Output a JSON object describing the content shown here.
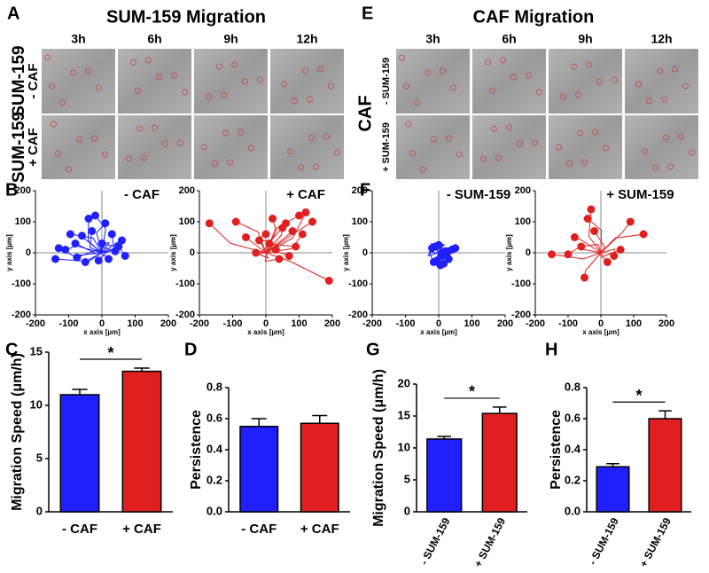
{
  "time_lapse": [
    {
      "panel": "A",
      "title": "SUM-159 Migration",
      "columns": [
        "3h",
        "6h",
        "9h",
        "12h"
      ],
      "rows": [
        {
          "label": "SUM-159",
          "condition": "- CAF"
        },
        {
          "label": "SUM-159",
          "condition": "+ CAF"
        }
      ]
    },
    {
      "panel": "E",
      "title": "CAF Migration",
      "columns": [
        "3h",
        "6h",
        "9h",
        "12h"
      ],
      "group_label": "CAF",
      "rows": [
        {
          "condition": "- SUM-159"
        },
        {
          "condition": "+ SUM-159"
        }
      ]
    }
  ],
  "chart_data": [
    {
      "type": "scatter",
      "panel": "B",
      "title": "- CAF",
      "xlabel": "x axis [µm]",
      "ylabel": "y axis [µm]",
      "color": "#1f1fff",
      "xlim": [
        -200,
        200
      ],
      "ylim": [
        -200,
        200
      ],
      "xticks": [
        -200,
        -100,
        0,
        100,
        200
      ],
      "yticks": [
        -200,
        -100,
        0,
        100,
        200
      ],
      "x": [
        -130,
        -95,
        -60,
        -140,
        -110,
        -75,
        -40,
        -20,
        10,
        30,
        50,
        70,
        -50,
        -10,
        20,
        -80,
        40,
        60,
        -30,
        0
      ],
      "y": [
        15,
        60,
        55,
        -20,
        10,
        -15,
        110,
        120,
        95,
        60,
        20,
        -10,
        -30,
        -25,
        -20,
        30,
        5,
        40,
        70,
        30
      ]
    },
    {
      "type": "scatter",
      "title": "+ CAF",
      "xlabel": "x axis [µm]",
      "ylabel": "y axis [µm]",
      "color": "#e02020",
      "xlim": [
        -200,
        200
      ],
      "ylim": [
        -200,
        200
      ],
      "xticks": [
        -200,
        -100,
        0,
        100,
        200
      ],
      "yticks": [
        -200,
        -100,
        0,
        100,
        200
      ],
      "x": [
        -170,
        -90,
        -60,
        -30,
        0,
        20,
        60,
        80,
        100,
        120,
        90,
        140,
        40,
        -20,
        70,
        110,
        190,
        50,
        10,
        30
      ],
      "y": [
        95,
        100,
        50,
        0,
        60,
        110,
        95,
        70,
        120,
        130,
        20,
        100,
        -20,
        40,
        -10,
        60,
        -90,
        80,
        30,
        10
      ]
    },
    {
      "type": "scatter",
      "panel": "F",
      "title": "- SUM-159",
      "xlabel": "x axis [µm]",
      "ylabel": "y axis [µm]",
      "color": "#1f1fff",
      "xlim": [
        -200,
        200
      ],
      "ylim": [
        -200,
        200
      ],
      "xticks": [
        -200,
        -100,
        0,
        100,
        200
      ],
      "yticks": [
        -200,
        -100,
        0,
        100,
        200
      ],
      "x": [
        -20,
        -10,
        0,
        10,
        20,
        30,
        40,
        50,
        -15,
        5,
        25,
        -5,
        15,
        10
      ],
      "y": [
        15,
        20,
        25,
        -10,
        5,
        -20,
        10,
        15,
        -30,
        -40,
        0,
        -25,
        -35,
        0
      ]
    },
    {
      "type": "scatter",
      "title": "+ SUM-159",
      "xlabel": "x axis [µm]",
      "ylabel": "y axis [µm]",
      "color": "#e02020",
      "xlim": [
        -200,
        200
      ],
      "ylim": [
        -200,
        200
      ],
      "xticks": [
        -200,
        -100,
        0,
        100,
        200
      ],
      "yticks": [
        -200,
        -100,
        0,
        100,
        200
      ],
      "x": [
        -30,
        -40,
        -80,
        -150,
        -100,
        40,
        -50,
        90,
        130,
        -20,
        20,
        -60,
        60
      ],
      "y": [
        140,
        110,
        50,
        -5,
        -5,
        -10,
        -80,
        100,
        60,
        70,
        -30,
        20,
        10
      ]
    },
    {
      "type": "bar",
      "panel": "C",
      "ylabel": "Migration Speed (μm/h)",
      "categories": [
        "- CAF",
        "+ CAF"
      ],
      "values": [
        11.0,
        13.2
      ],
      "errors": [
        0.5,
        0.3
      ],
      "colors": [
        "#1f1fff",
        "#e02020"
      ],
      "ylim": [
        0,
        15
      ],
      "yticks": [
        0,
        5,
        10,
        15
      ],
      "significance": "*"
    },
    {
      "type": "bar",
      "panel": "D",
      "ylabel": "Persistence",
      "categories": [
        "- CAF",
        "+ CAF"
      ],
      "values": [
        0.55,
        0.57
      ],
      "errors": [
        0.05,
        0.05
      ],
      "colors": [
        "#1f1fff",
        "#e02020"
      ],
      "ylim": [
        0,
        0.8
      ],
      "yticks": [
        {
          "value": 0,
          "label": "0.0"
        },
        0.2,
        0.4,
        0.6,
        0.8
      ]
    },
    {
      "type": "bar",
      "panel": "G",
      "ylabel": "Migration Speed (μm/h)",
      "categories": [
        "- SUM-159",
        "+ SUM-159"
      ],
      "values": [
        11.4,
        15.4
      ],
      "errors": [
        0.4,
        1.0
      ],
      "colors": [
        "#1f1fff",
        "#e02020"
      ],
      "ylim": [
        0,
        20
      ],
      "yticks": [
        0,
        5,
        10,
        15,
        20
      ],
      "significance": "*"
    },
    {
      "type": "bar",
      "panel": "H",
      "ylabel": "Persistence",
      "categories": [
        "- SUM-159",
        "+ SUM-159"
      ],
      "values": [
        0.29,
        0.6
      ],
      "errors": [
        0.02,
        0.05
      ],
      "colors": [
        "#1f1fff",
        "#e02020"
      ],
      "ylim": [
        0,
        0.8
      ],
      "yticks": [
        {
          "value": 0,
          "label": "0.0"
        },
        0.2,
        0.4,
        0.6,
        0.8
      ],
      "significance": "*"
    }
  ]
}
